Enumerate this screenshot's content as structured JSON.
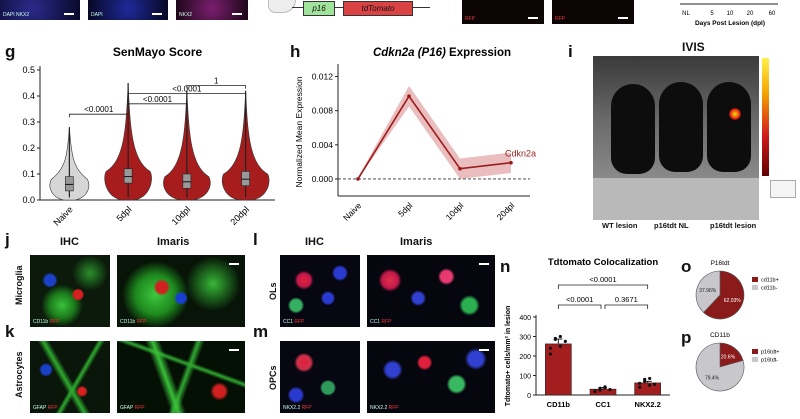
{
  "top_strip": {
    "caption_1": "DAPI NKX2",
    "caption_2": "DAPI",
    "caption_3": "NKX2",
    "construct_promoter": "p16",
    "construct_reporter": "tdTomato",
    "rfp_label_1": "RFP",
    "rfp_label_2": "RFP",
    "timeline_ticks": [
      "NL",
      "5",
      "10",
      "20",
      "60"
    ],
    "timeline_label": "Days Post Lesion (dpl)"
  },
  "panel_labels": {
    "g": "g",
    "h": "h",
    "i": "i",
    "j": "j",
    "k": "k",
    "l": "l",
    "m": "m",
    "n": "n",
    "o": "o",
    "p": "p"
  },
  "chart_data": [
    {
      "id": "g",
      "type": "violin",
      "title": "SenMayo Score",
      "xlabel": "",
      "ylabel": "",
      "ylim": [
        0,
        0.5
      ],
      "yticks": [
        "0.0",
        "0.1",
        "0.2",
        "0.3",
        "0.4",
        "0.5"
      ],
      "categories": [
        "Naive",
        "5dpl",
        "10dpl",
        "20dpl"
      ],
      "medians": [
        0.06,
        0.09,
        0.07,
        0.08
      ],
      "maxima": [
        0.28,
        0.45,
        0.42,
        0.42
      ],
      "colors": [
        "#d6d6d6",
        "#a71d1d",
        "#a71d1d",
        "#a71d1d"
      ],
      "comparisons": [
        {
          "from": "Naive",
          "to": "5dpl",
          "label": "<0.0001"
        },
        {
          "from": "5dpl",
          "to": "10dpl",
          "label": "<0.0001"
        },
        {
          "from": "5dpl",
          "to": "20dpl",
          "label": "<0.0001"
        },
        {
          "from": "10dpl",
          "to": "20dpl",
          "label": "1"
        }
      ]
    },
    {
      "id": "h",
      "type": "line",
      "title_italic": "Cdkn2a (P16)",
      "title_rest": " Expression",
      "ylabel": "Normalized Mean Expression",
      "ylim": [
        -0.002,
        0.013
      ],
      "yticks": [
        "0.000",
        "0.004",
        "0.008",
        "0.012"
      ],
      "categories": [
        "Naive",
        "5dpl",
        "10dpl",
        "20dpl"
      ],
      "series": [
        {
          "name": "Cdkn2a",
          "values": [
            0.0,
            0.0097,
            0.0012,
            0.0019
          ]
        }
      ],
      "color": "#9b1b1b"
    },
    {
      "id": "n",
      "type": "bar",
      "title": "Tdtomato Colocalization",
      "ylabel": "Tdtomato+ cells/mm² in lesion",
      "ylim": [
        0,
        400
      ],
      "yticks": [
        "0",
        "100",
        "200",
        "300",
        "400"
      ],
      "categories": [
        "CD11b",
        "CC1",
        "NKX2.2"
      ],
      "values": [
        262,
        30,
        62
      ],
      "comparisons": [
        {
          "from": "CD11b",
          "to": "NKX2.2",
          "label": "<0.0001"
        },
        {
          "from": "CD11b",
          "to": "CC1",
          "label": "<0.0001"
        },
        {
          "from": "CC1",
          "to": "NKX2.2",
          "label": "0.3671"
        }
      ]
    },
    {
      "id": "o",
      "type": "pie",
      "title": "P16tdt",
      "slices": [
        {
          "label": "cd11b+",
          "value": 62.03,
          "color": "#8b1a1a"
        },
        {
          "label": "cd11b-",
          "value": 37.96,
          "color": "#c8c8cc"
        }
      ],
      "slice_texts": [
        "62.03%",
        "37.96%"
      ]
    },
    {
      "id": "p",
      "type": "pie",
      "title": "CD11b",
      "slices": [
        {
          "label": "p16tdt+",
          "value": 20.6,
          "color": "#8b1a1a"
        },
        {
          "label": "p16tdt-",
          "value": 79.4,
          "color": "#c8c8cc"
        }
      ],
      "slice_texts": [
        "20.6%",
        "79.4%"
      ]
    }
  ],
  "ivis": {
    "title": "IVIS",
    "labels": [
      "WT lesion",
      "p16tdt NL",
      "p16tdt lesion"
    ]
  },
  "microscopy": {
    "j_title_ihc": "IHC",
    "j_title_imaris": "Imaris",
    "l_title_ihc": "IHC",
    "l_title_imaris": "Imaris",
    "row_microglia": "Microglia",
    "row_astrocytes": "Astrocytes",
    "row_ols": "OLs",
    "row_opcs": "OPCs",
    "cap_cd11b": "CD11b",
    "cap_gfap": "GFAP",
    "cap_cc1": "CC1",
    "cap_nkx": "NKX2.2",
    "cap_rfp": "RFP"
  }
}
